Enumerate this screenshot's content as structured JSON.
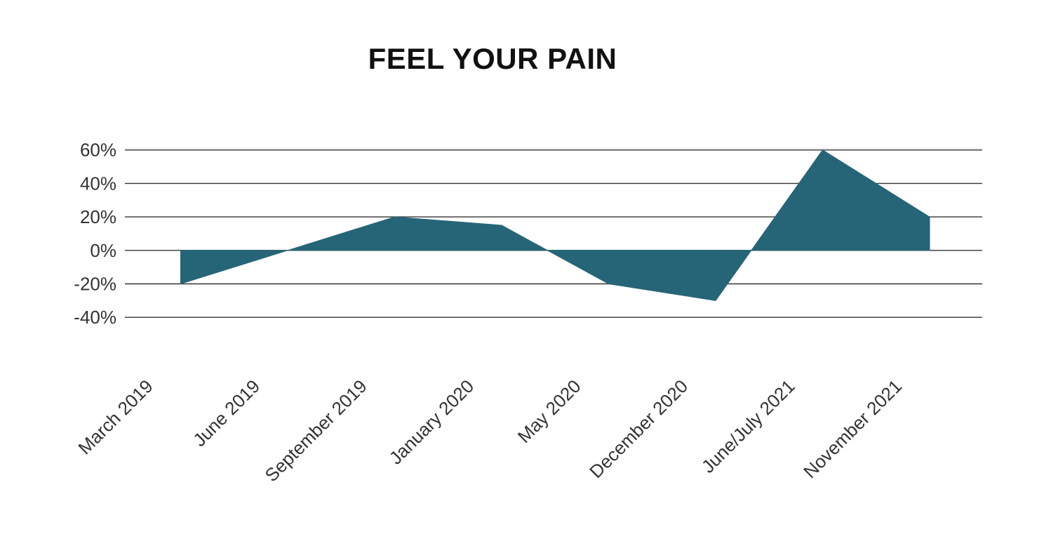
{
  "chart_data": {
    "type": "area",
    "title": "FEEL YOUR PAIN",
    "xlabel": "",
    "ylabel": "",
    "categories": [
      "March 2019",
      "June 2019",
      "September 2019",
      "January 2020",
      "May 2020",
      "December 2020",
      "June/July 2021",
      "November 2021"
    ],
    "values": [
      -20,
      0,
      20,
      15,
      -20,
      -30,
      60,
      20
    ],
    "unit": "%",
    "ylim": [
      -40,
      60
    ],
    "ytick_step": 20,
    "yticks": [
      60,
      40,
      20,
      0,
      -20,
      -40
    ],
    "ytick_labels": [
      "60%",
      "40%",
      "20%",
      "0%",
      "-20%",
      "-40%"
    ],
    "baseline": 0,
    "grid": true,
    "legend": "none",
    "x_label_rotation_deg": -45
  },
  "colors": {
    "area": "#266577",
    "grid": "#333333",
    "grid_top": "#7d7d7d",
    "axis_text": "#333333",
    "title_text": "#111111",
    "background": "#ffffff"
  }
}
